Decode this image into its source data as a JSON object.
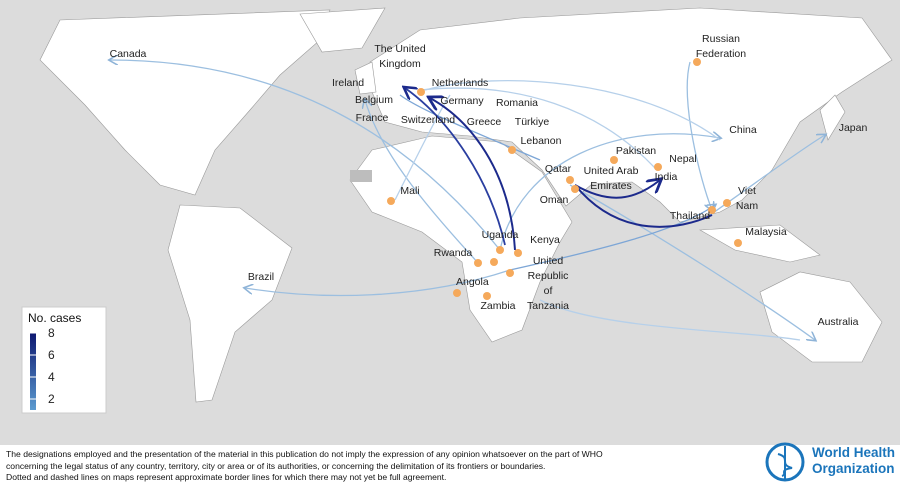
{
  "map": {
    "labels": [
      "Canada",
      "Russian Federation",
      "The United Kingdom",
      "Netherlands",
      "Ireland",
      "Belgium",
      "Germany",
      "Romania",
      "France",
      "Switzerland",
      "Greece",
      "Türkiye",
      "Japan",
      "China",
      "Lebanon",
      "Pakistan",
      "United Arab Emirates",
      "Nepal",
      "Qatar",
      "India",
      "Mali",
      "Oman",
      "Viet Nam",
      "Thailand",
      "Uganda",
      "Kenya",
      "Malaysia",
      "Rwanda",
      "United Republic of Tanzania",
      "Brazil",
      "Angola",
      "Zambia",
      "Australia"
    ],
    "legend": {
      "title": "No. cases",
      "range": [
        1,
        8
      ],
      "ticks": [
        8,
        6,
        4,
        2
      ],
      "colors": [
        "#5b9bd0",
        "#0d1870"
      ]
    }
  },
  "footer": {
    "disclaimer": [
      "The designations employed and the presentation of the material in this publication do not imply the expression of any opinion whatsoever on the part of WHO",
      "concerning the legal status of any country, territory, city or area or of its authorities, or concerning the delimitation of its frontiers or boundaries.",
      "Dotted and dashed lines on maps represent approximate border lines for which there may not yet be full agreement."
    ]
  },
  "logo": {
    "lines": [
      "World Health",
      "Organization"
    ]
  }
}
